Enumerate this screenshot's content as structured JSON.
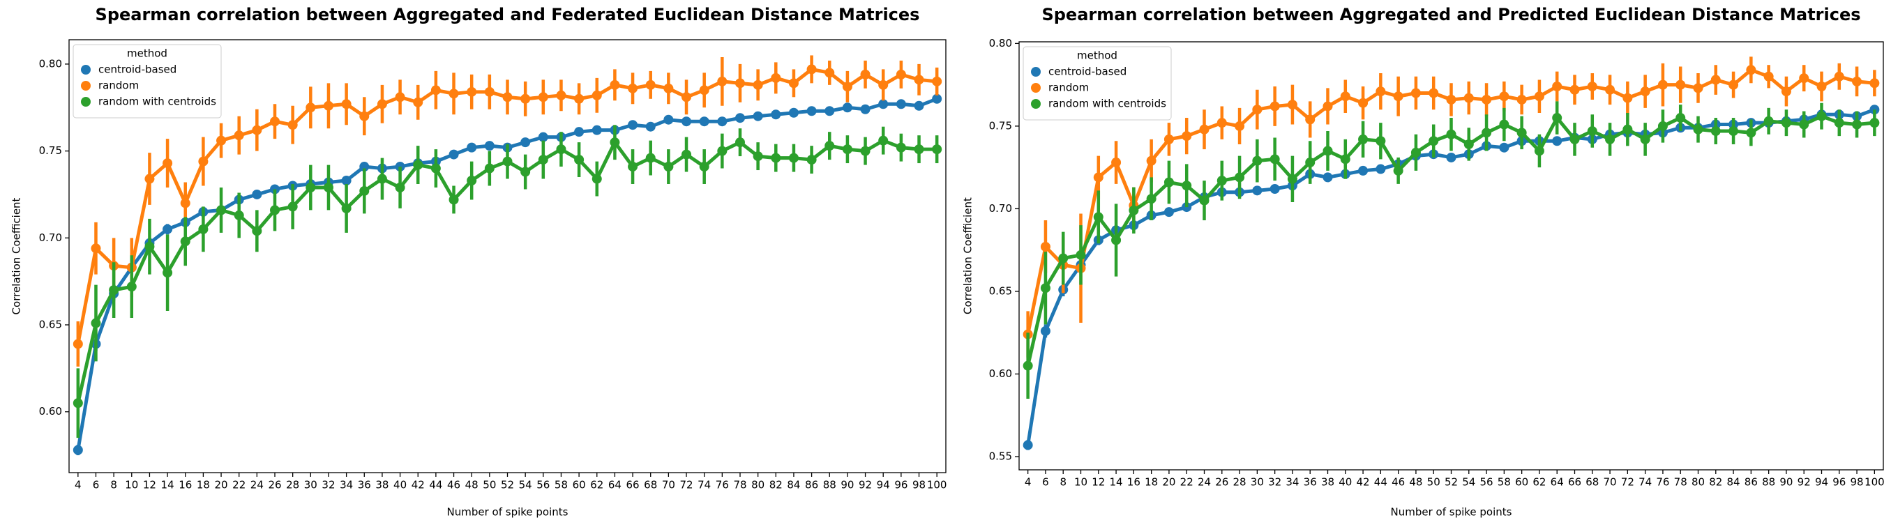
{
  "chart_data": [
    {
      "type": "point",
      "title": "Spearman correlation between Aggregated and Federated Euclidean Distance Matrices",
      "x_label": "Number of spike points",
      "y_label": "Correlation Coefficient",
      "legend_title": "method",
      "legend": "upper left",
      "categories": [
        4,
        6,
        8,
        10,
        12,
        14,
        16,
        18,
        20,
        22,
        24,
        26,
        28,
        30,
        32,
        34,
        36,
        38,
        40,
        42,
        44,
        46,
        48,
        50,
        52,
        54,
        56,
        58,
        60,
        62,
        64,
        66,
        68,
        70,
        72,
        74,
        76,
        78,
        80,
        82,
        84,
        86,
        88,
        90,
        92,
        94,
        96,
        98,
        100
      ],
      "ylim": [
        0.565,
        0.814
      ],
      "yticks": [
        {
          "value": 0.6,
          "label": "0.60"
        },
        {
          "value": 0.65,
          "label": "0.65"
        },
        {
          "value": 0.7,
          "label": "0.70"
        },
        {
          "value": 0.75,
          "label": "0.75"
        },
        {
          "value": 0.8,
          "label": "0.80"
        }
      ],
      "series": [
        {
          "name": "centroid-based",
          "color": "#1f77b4",
          "values": [
            0.578,
            0.639,
            0.668,
            0.683,
            0.697,
            0.705,
            0.709,
            0.715,
            0.716,
            0.722,
            0.725,
            0.728,
            0.73,
            0.731,
            0.732,
            0.733,
            0.741,
            0.74,
            0.741,
            0.743,
            0.744,
            0.748,
            0.752,
            0.753,
            0.752,
            0.755,
            0.758,
            0.758,
            0.761,
            0.762,
            0.762,
            0.765,
            0.764,
            0.768,
            0.767,
            0.767,
            0.767,
            0.769,
            0.77,
            0.771,
            0.772,
            0.773,
            0.773,
            0.775,
            0.774,
            0.777,
            0.777,
            0.776,
            0.78
          ],
          "errors": [
            0.003,
            0.004,
            0.004,
            0.003,
            0.003,
            0.003,
            0.003,
            0.002,
            0.002,
            0.002,
            0.002,
            0.002,
            0.002,
            0.002,
            0.002,
            0.002,
            0.002,
            0.002,
            0.002,
            0.002,
            0.002,
            0.002,
            0.002,
            0.002,
            0.002,
            0.002,
            0.002,
            0.002,
            0.002,
            0.002,
            0.002,
            0.002,
            0.002,
            0.002,
            0.002,
            0.002,
            0.002,
            0.002,
            0.002,
            0.002,
            0.002,
            0.002,
            0.002,
            0.002,
            0.002,
            0.002,
            0.002,
            0.002,
            0.002
          ]
        },
        {
          "name": "random",
          "color": "#ff7f0e",
          "values": [
            0.639,
            0.694,
            0.684,
            0.683,
            0.734,
            0.743,
            0.72,
            0.744,
            0.756,
            0.759,
            0.762,
            0.767,
            0.765,
            0.775,
            0.776,
            0.777,
            0.77,
            0.777,
            0.781,
            0.778,
            0.785,
            0.783,
            0.784,
            0.784,
            0.781,
            0.78,
            0.781,
            0.782,
            0.78,
            0.782,
            0.788,
            0.786,
            0.788,
            0.786,
            0.781,
            0.785,
            0.79,
            0.789,
            0.788,
            0.792,
            0.789,
            0.797,
            0.795,
            0.787,
            0.794,
            0.788,
            0.794,
            0.791,
            0.79
          ],
          "errors": [
            0.013,
            0.015,
            0.016,
            0.017,
            0.015,
            0.014,
            0.012,
            0.014,
            0.01,
            0.011,
            0.012,
            0.01,
            0.011,
            0.012,
            0.013,
            0.012,
            0.011,
            0.011,
            0.01,
            0.01,
            0.011,
            0.012,
            0.01,
            0.01,
            0.01,
            0.01,
            0.01,
            0.009,
            0.009,
            0.01,
            0.009,
            0.009,
            0.008,
            0.009,
            0.01,
            0.01,
            0.014,
            0.011,
            0.009,
            0.009,
            0.008,
            0.008,
            0.007,
            0.009,
            0.008,
            0.009,
            0.008,
            0.009,
            0.008
          ]
        },
        {
          "name": "random with centroids",
          "color": "#2ca02c",
          "values": [
            0.605,
            0.651,
            0.67,
            0.672,
            0.695,
            0.68,
            0.698,
            0.705,
            0.716,
            0.713,
            0.704,
            0.716,
            0.718,
            0.729,
            0.729,
            0.717,
            0.727,
            0.734,
            0.729,
            0.742,
            0.74,
            0.722,
            0.733,
            0.74,
            0.744,
            0.738,
            0.745,
            0.751,
            0.745,
            0.734,
            0.755,
            0.741,
            0.746,
            0.741,
            0.748,
            0.741,
            0.75,
            0.755,
            0.747,
            0.746,
            0.746,
            0.745,
            0.753,
            0.751,
            0.75,
            0.756,
            0.752,
            0.751,
            0.751
          ],
          "errors": [
            0.02,
            0.022,
            0.016,
            0.018,
            0.016,
            0.022,
            0.014,
            0.013,
            0.013,
            0.013,
            0.012,
            0.012,
            0.013,
            0.013,
            0.013,
            0.014,
            0.013,
            0.012,
            0.012,
            0.011,
            0.011,
            0.008,
            0.011,
            0.01,
            0.01,
            0.01,
            0.011,
            0.01,
            0.01,
            0.01,
            0.01,
            0.01,
            0.01,
            0.01,
            0.01,
            0.01,
            0.01,
            0.008,
            0.008,
            0.008,
            0.008,
            0.008,
            0.008,
            0.008,
            0.008,
            0.008,
            0.008,
            0.008,
            0.008
          ]
        }
      ]
    },
    {
      "type": "point",
      "title": "Spearman correlation between Aggregated and Predicted Euclidean Distance Matrices",
      "x_label": "Number of spike points",
      "y_label": "Correlation Coefficient",
      "legend_title": "method",
      "legend": "upper left",
      "categories": [
        4,
        6,
        8,
        10,
        12,
        14,
        16,
        18,
        20,
        22,
        24,
        26,
        28,
        30,
        32,
        34,
        36,
        38,
        40,
        42,
        44,
        46,
        48,
        50,
        52,
        54,
        56,
        58,
        60,
        62,
        64,
        66,
        68,
        70,
        72,
        74,
        76,
        78,
        80,
        82,
        84,
        86,
        88,
        90,
        92,
        94,
        96,
        98,
        100
      ],
      "ylim": [
        0.542,
        0.801
      ],
      "yticks": [
        {
          "value": 0.55,
          "label": "0.55"
        },
        {
          "value": 0.6,
          "label": "0.60"
        },
        {
          "value": 0.65,
          "label": "0.65"
        },
        {
          "value": 0.7,
          "label": "0.70"
        },
        {
          "value": 0.75,
          "label": "0.75"
        },
        {
          "value": 0.8,
          "label": "0.80"
        }
      ],
      "series": [
        {
          "name": "centroid-based",
          "color": "#1f77b4",
          "values": [
            0.557,
            0.626,
            0.651,
            0.666,
            0.681,
            0.687,
            0.69,
            0.696,
            0.698,
            0.701,
            0.707,
            0.71,
            0.71,
            0.711,
            0.712,
            0.714,
            0.721,
            0.719,
            0.721,
            0.723,
            0.724,
            0.727,
            0.732,
            0.733,
            0.731,
            0.733,
            0.738,
            0.737,
            0.741,
            0.741,
            0.741,
            0.743,
            0.742,
            0.745,
            0.746,
            0.745,
            0.746,
            0.749,
            0.749,
            0.751,
            0.751,
            0.752,
            0.752,
            0.753,
            0.754,
            0.757,
            0.757,
            0.756,
            0.76
          ],
          "errors": [
            0.003,
            0.004,
            0.004,
            0.003,
            0.003,
            0.003,
            0.003,
            0.002,
            0.002,
            0.002,
            0.002,
            0.002,
            0.002,
            0.002,
            0.002,
            0.002,
            0.002,
            0.002,
            0.002,
            0.002,
            0.002,
            0.002,
            0.002,
            0.002,
            0.002,
            0.002,
            0.002,
            0.002,
            0.002,
            0.002,
            0.002,
            0.002,
            0.002,
            0.002,
            0.002,
            0.002,
            0.002,
            0.002,
            0.002,
            0.002,
            0.002,
            0.002,
            0.002,
            0.002,
            0.002,
            0.002,
            0.002,
            0.002,
            0.002
          ]
        },
        {
          "name": "random",
          "color": "#ff7f0e",
          "values": [
            0.624,
            0.677,
            0.666,
            0.664,
            0.719,
            0.728,
            0.702,
            0.729,
            0.742,
            0.744,
            0.748,
            0.752,
            0.75,
            0.76,
            0.762,
            0.763,
            0.754,
            0.762,
            0.768,
            0.764,
            0.771,
            0.768,
            0.77,
            0.77,
            0.766,
            0.767,
            0.766,
            0.768,
            0.766,
            0.768,
            0.774,
            0.772,
            0.774,
            0.772,
            0.767,
            0.771,
            0.775,
            0.775,
            0.773,
            0.778,
            0.775,
            0.784,
            0.78,
            0.771,
            0.779,
            0.774,
            0.78,
            0.777,
            0.776
          ],
          "errors": [
            0.014,
            0.016,
            0.017,
            0.033,
            0.013,
            0.013,
            0.011,
            0.013,
            0.01,
            0.011,
            0.012,
            0.01,
            0.011,
            0.012,
            0.012,
            0.012,
            0.011,
            0.011,
            0.01,
            0.01,
            0.011,
            0.012,
            0.01,
            0.01,
            0.01,
            0.01,
            0.01,
            0.009,
            0.009,
            0.01,
            0.009,
            0.009,
            0.008,
            0.009,
            0.01,
            0.01,
            0.013,
            0.011,
            0.009,
            0.009,
            0.008,
            0.008,
            0.007,
            0.009,
            0.008,
            0.009,
            0.008,
            0.009,
            0.008
          ]
        },
        {
          "name": "random with centroids",
          "color": "#2ca02c",
          "values": [
            0.605,
            0.652,
            0.67,
            0.672,
            0.695,
            0.681,
            0.699,
            0.706,
            0.716,
            0.714,
            0.705,
            0.717,
            0.719,
            0.729,
            0.73,
            0.718,
            0.728,
            0.735,
            0.73,
            0.742,
            0.741,
            0.723,
            0.734,
            0.741,
            0.745,
            0.739,
            0.746,
            0.751,
            0.746,
            0.735,
            0.755,
            0.742,
            0.747,
            0.742,
            0.748,
            0.742,
            0.75,
            0.755,
            0.748,
            0.747,
            0.747,
            0.746,
            0.753,
            0.752,
            0.751,
            0.756,
            0.752,
            0.751,
            0.752
          ],
          "errors": [
            0.02,
            0.022,
            0.016,
            0.018,
            0.016,
            0.022,
            0.014,
            0.013,
            0.013,
            0.013,
            0.012,
            0.012,
            0.013,
            0.013,
            0.013,
            0.014,
            0.013,
            0.012,
            0.012,
            0.011,
            0.011,
            0.008,
            0.011,
            0.01,
            0.01,
            0.01,
            0.011,
            0.01,
            0.01,
            0.01,
            0.01,
            0.01,
            0.01,
            0.01,
            0.01,
            0.01,
            0.01,
            0.008,
            0.008,
            0.008,
            0.008,
            0.008,
            0.008,
            0.008,
            0.008,
            0.008,
            0.008,
            0.008,
            0.008
          ]
        }
      ]
    }
  ]
}
